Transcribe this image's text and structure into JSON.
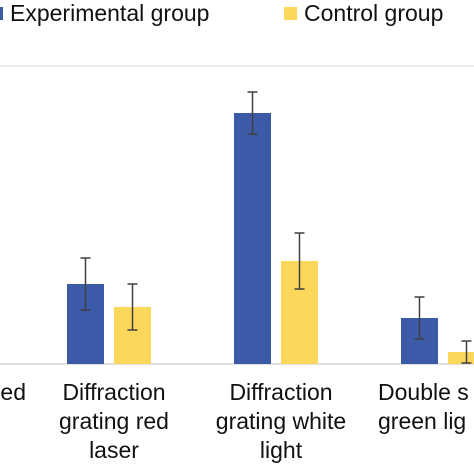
{
  "chart_data": {
    "type": "bar",
    "categories": [
      "ed",
      "Diffraction\ngrating red\nlaser",
      "Diffraction\ngrating white\nlight",
      "Double s\ngreen lig"
    ],
    "series": [
      {
        "name": "Experimental group",
        "color": "#3b5ba9",
        "values": [
          null,
          80,
          251,
          46
        ],
        "errors": [
          null,
          26,
          21,
          21
        ]
      },
      {
        "name": "Control group",
        "color": "#fbd75c",
        "values": [
          null,
          57,
          103,
          12
        ],
        "errors": [
          null,
          23,
          28,
          11
        ]
      }
    ],
    "ylim": [
      0,
      300
    ]
  }
}
